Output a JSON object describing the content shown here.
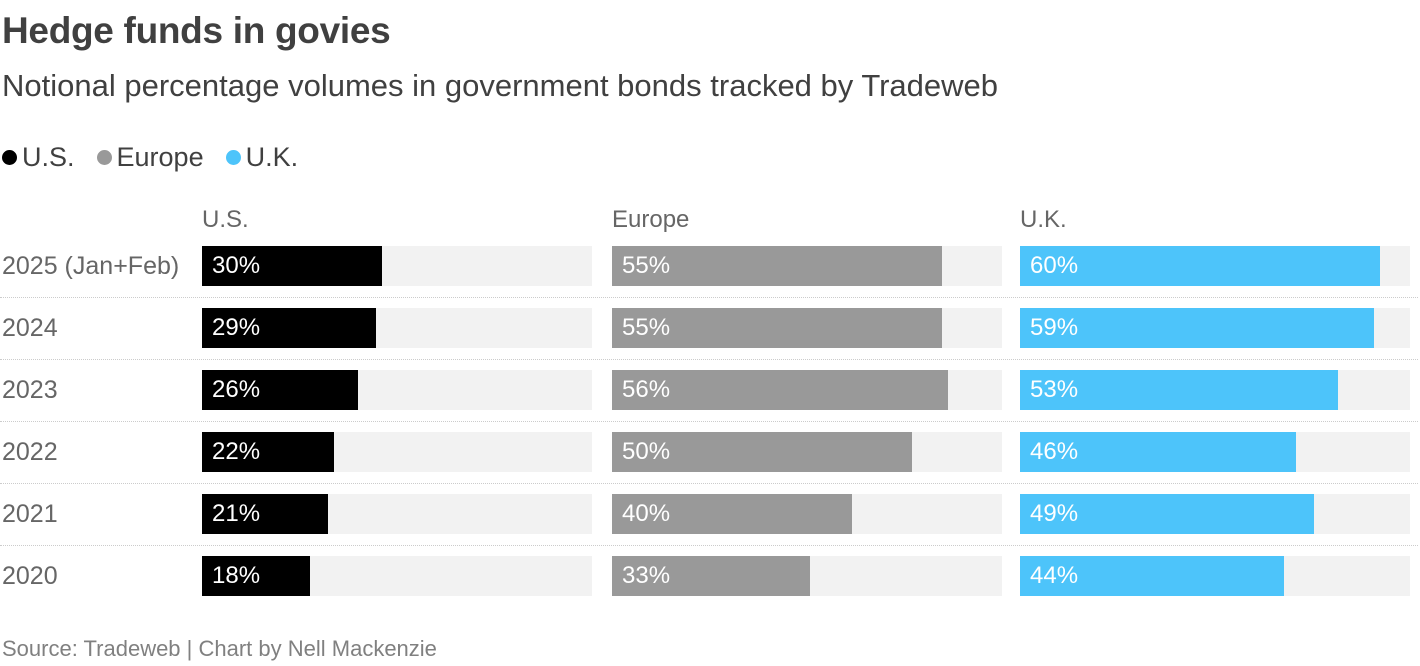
{
  "title": "Hedge funds in govies",
  "subtitle": "Notional percentage volumes in government bonds tracked by Tradeweb",
  "legend": [
    {
      "label": "U.S.",
      "color": "#000000"
    },
    {
      "label": "Europe",
      "color": "#999999"
    },
    {
      "label": "U.K.",
      "color": "#4dc4fa"
    }
  ],
  "source": "Source: Tradeweb | Chart by Nell Mackenzie",
  "chart_data": {
    "type": "bar",
    "orientation": "horizontal",
    "title": "Hedge funds in govies",
    "subtitle": "Notional percentage volumes in government bonds tracked by Tradeweb",
    "categories": [
      "2025 (Jan+Feb)",
      "2024",
      "2023",
      "2022",
      "2021",
      "2020"
    ],
    "xlim": [
      0,
      100
    ],
    "unit": "%",
    "series": [
      {
        "name": "U.S.",
        "color": "#000000",
        "values": [
          30,
          29,
          26,
          22,
          21,
          18
        ],
        "labels": [
          "30%",
          "29%",
          "26%",
          "22%",
          "21%",
          "18%"
        ]
      },
      {
        "name": "Europe",
        "color": "#999999",
        "values": [
          55,
          55,
          56,
          50,
          40,
          33
        ],
        "labels": [
          "55%",
          "55%",
          "56%",
          "50%",
          "40%",
          "33%"
        ]
      },
      {
        "name": "U.K.",
        "color": "#4dc4fa",
        "values": [
          60,
          59,
          53,
          46,
          49,
          44
        ],
        "labels": [
          "60%",
          "59%",
          "53%",
          "46%",
          "49%",
          "44%"
        ]
      }
    ]
  }
}
